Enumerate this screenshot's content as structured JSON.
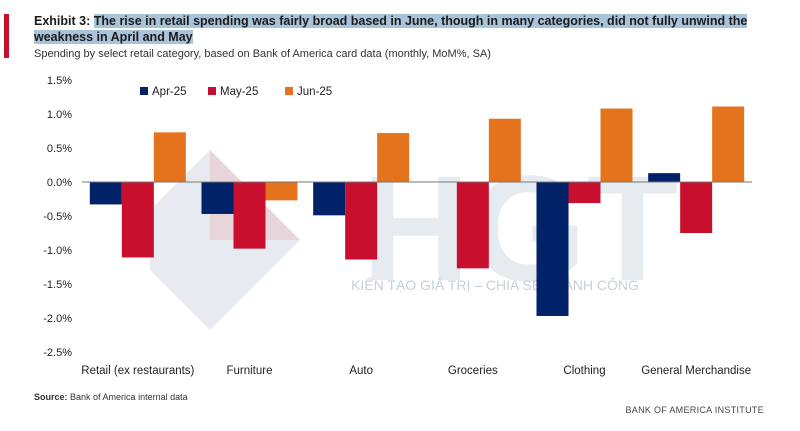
{
  "header": {
    "exhibit_label": "Exhibit 3:",
    "title_text": "The rise in retail spending was fairly broad based in June, though in many categories, did not fully unwind the weakness in April and May",
    "subtitle": "Spending by select retail category, based on Bank of America card data (monthly, MoM%, SA)"
  },
  "footer": {
    "source_label": "Source:",
    "source_text": "Bank of America internal data",
    "brand": "BANK OF AMERICA INSTITUTE"
  },
  "watermark": {
    "letters": "HGT",
    "tagline": "KIẾN TẠO GIÁ TRỊ – CHIA SẺ THÀNH CÔNG"
  },
  "chart_data": {
    "type": "bar",
    "title": "",
    "xlabel": "",
    "ylabel": "",
    "ylim": [
      -2.5,
      1.5
    ],
    "yticks": [
      1.5,
      1.0,
      0.5,
      0.0,
      -0.5,
      -1.0,
      -1.5,
      -2.0,
      -2.5
    ],
    "ytick_labels": [
      "1.5%",
      "1.0%",
      "0.5%",
      "0.0%",
      "-0.5%",
      "-1.0%",
      "-1.5%",
      "-2.0%",
      "-2.5%"
    ],
    "grid": false,
    "legend_position": "top-left",
    "categories": [
      "Retail (ex restaurants)",
      "Furniture",
      "Auto",
      "Groceries",
      "Clothing",
      "General Merchandise"
    ],
    "series": [
      {
        "name": "Apr-25",
        "color": "#012169",
        "values": [
          -0.33,
          -0.47,
          -0.49,
          0.0,
          -1.97,
          0.13
        ]
      },
      {
        "name": "May-25",
        "color": "#c8102e",
        "values": [
          -1.11,
          -0.98,
          -1.14,
          -1.27,
          -0.31,
          -0.75
        ]
      },
      {
        "name": "Jun-25",
        "color": "#e5721d",
        "values": [
          0.73,
          -0.27,
          0.72,
          0.93,
          1.08,
          1.11
        ]
      }
    ]
  }
}
